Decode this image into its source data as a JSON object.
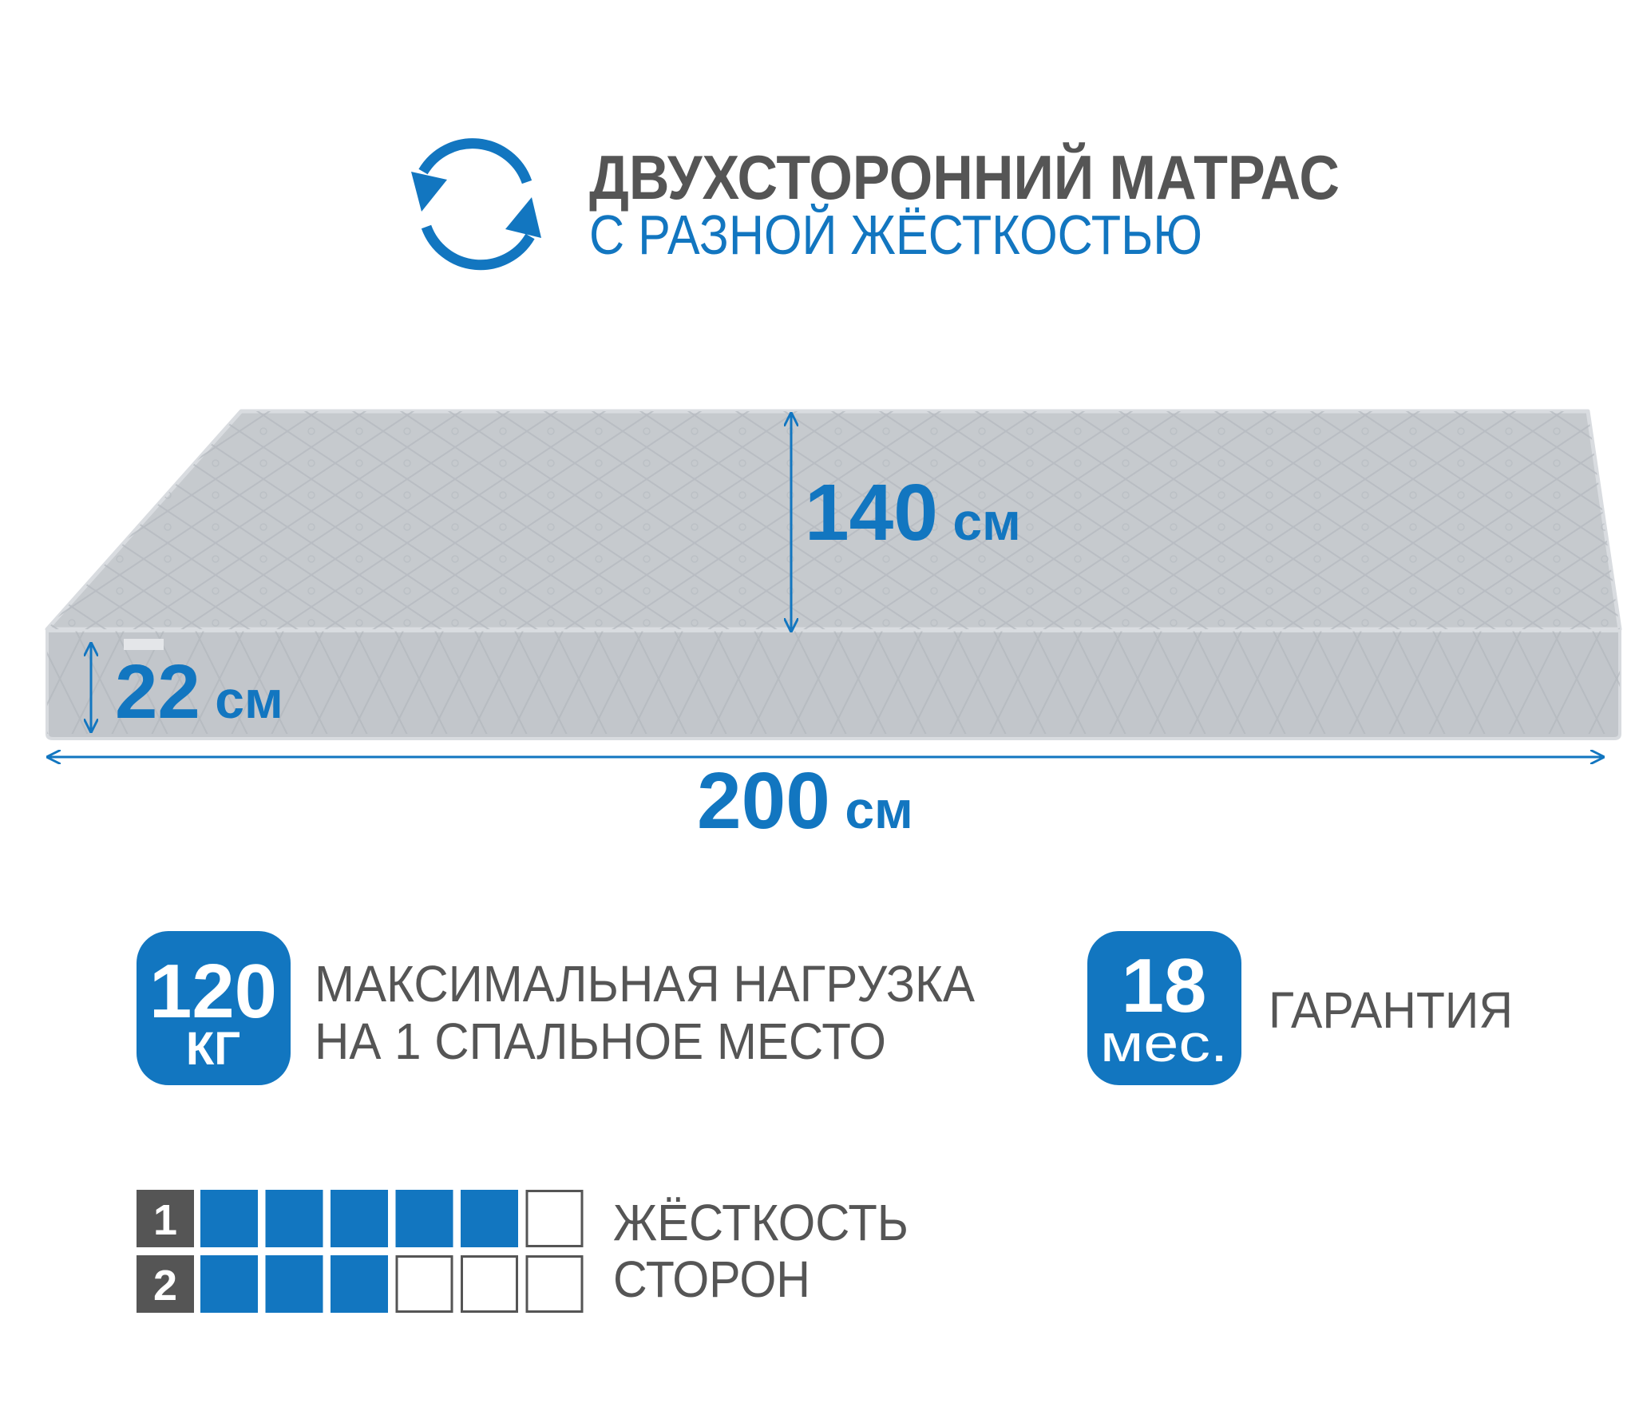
{
  "header": {
    "icon": "refresh-cycle-icon",
    "title_line1": "ДВУХСТОРОННИЙ МАТРАС",
    "title_line2": "С РАЗНОЙ ЖЁСТКОСТЬЮ"
  },
  "dimensions": {
    "width_value": "140",
    "length_value": "200",
    "height_value": "22",
    "unit": "см"
  },
  "features": {
    "load": {
      "value": "120",
      "unit": "КГ",
      "line1": "МАКСИМАЛЬНАЯ НАГРУЗКА",
      "line2": "НА 1 СПАЛЬНОЕ МЕСТО"
    },
    "warranty": {
      "value": "18",
      "unit": "мес.",
      "label": "ГАРАНТИЯ"
    }
  },
  "firmness": {
    "label_line1": "ЖЁСТКОСТЬ",
    "label_line2": "СТОРОН",
    "max_level": 6,
    "sides": [
      {
        "label": "1",
        "level": 5
      },
      {
        "label": "2",
        "level": 3
      }
    ]
  },
  "colors": {
    "accent": "#1276c0",
    "text": "#555555",
    "mattress": "#c3c7cc"
  }
}
